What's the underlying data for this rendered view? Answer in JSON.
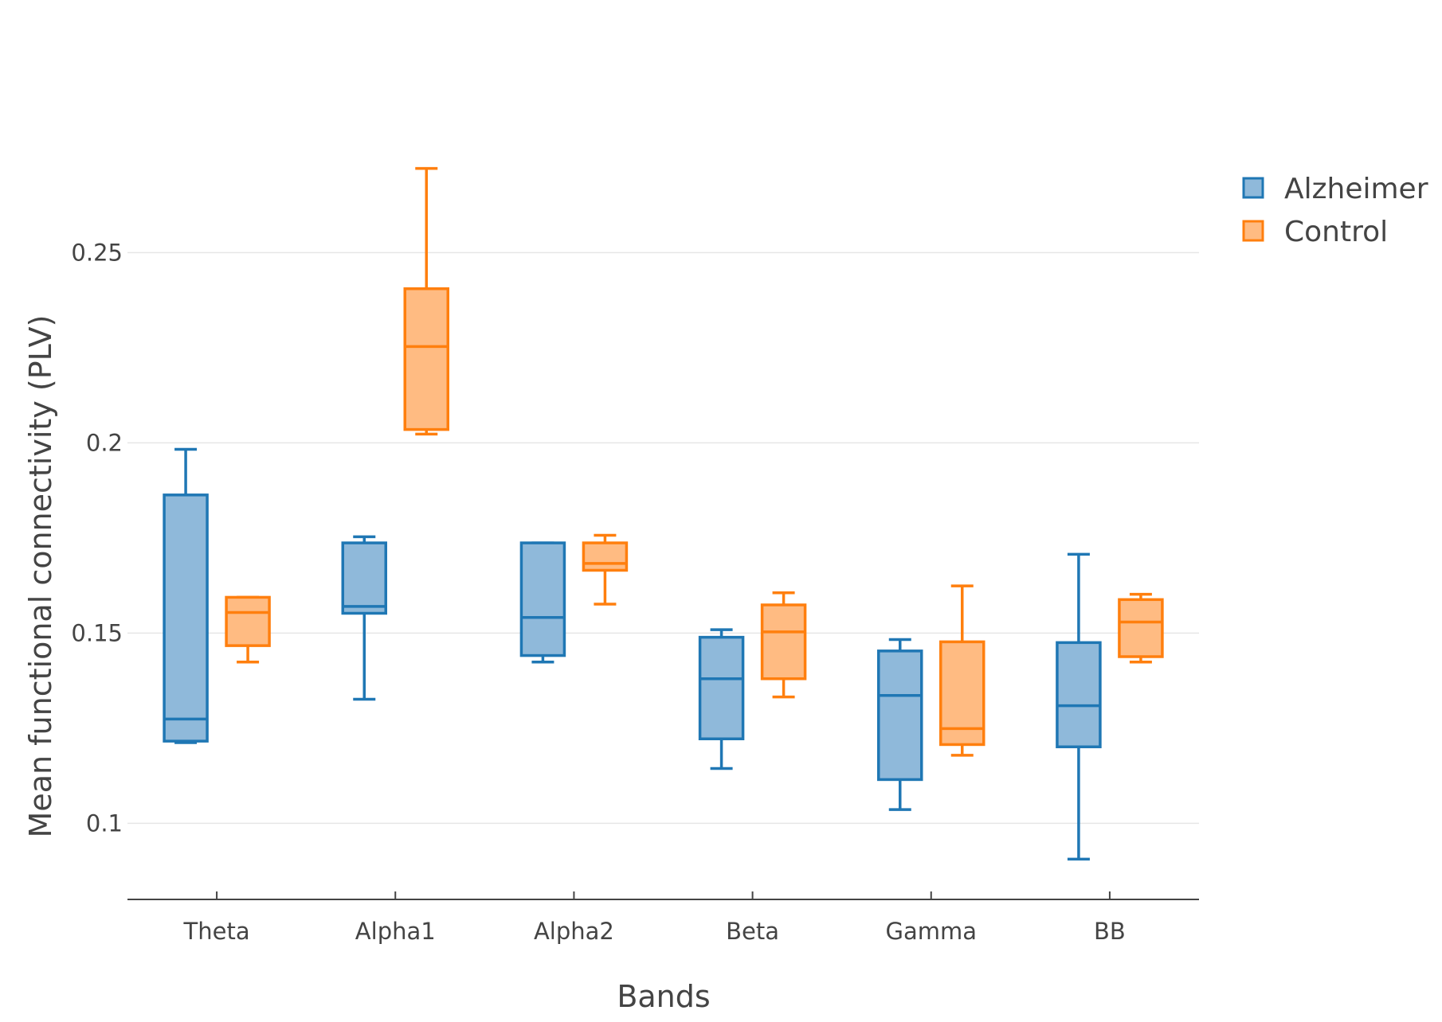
{
  "chart_data": {
    "type": "box",
    "title": "",
    "xlabel": "Bands",
    "ylabel": "Mean functional connectivity (PLV)",
    "categories": [
      "Theta",
      "Alpha1",
      "Alpha2",
      "Beta",
      "Gamma",
      "BB"
    ],
    "ylim": [
      0.08,
      0.285
    ],
    "yticks": [
      {
        "value": 0.1,
        "label": "0.1"
      },
      {
        "value": 0.15,
        "label": "0.15"
      },
      {
        "value": 0.2,
        "label": "0.2"
      },
      {
        "value": 0.25,
        "label": "0.25"
      }
    ],
    "grid": true,
    "legend_position": "top-right",
    "series": [
      {
        "name": "Alzheimer",
        "color": "#1f77b4",
        "fill": "#8fb9da",
        "boxes": [
          {
            "min": 0.1212,
            "q1": 0.1216,
            "median": 0.1274,
            "q3": 0.1863,
            "max": 0.1983
          },
          {
            "min": 0.1326,
            "q1": 0.1552,
            "median": 0.157,
            "q3": 0.1737,
            "max": 0.1753
          },
          {
            "min": 0.1424,
            "q1": 0.1441,
            "median": 0.1541,
            "q3": 0.1737,
            "max": 0.1737
          },
          {
            "min": 0.1144,
            "q1": 0.1222,
            "median": 0.138,
            "q3": 0.1489,
            "max": 0.1509
          },
          {
            "min": 0.1036,
            "q1": 0.1115,
            "median": 0.1336,
            "q3": 0.1453,
            "max": 0.1483
          },
          {
            "min": 0.0906,
            "q1": 0.1201,
            "median": 0.1309,
            "q3": 0.1475,
            "max": 0.1707
          }
        ]
      },
      {
        "name": "Control",
        "color": "#ff7f0e",
        "fill": "#ffbb82",
        "boxes": [
          {
            "min": 0.1424,
            "q1": 0.1467,
            "median": 0.1554,
            "q3": 0.1594,
            "max": 0.1594
          },
          {
            "min": 0.2023,
            "q1": 0.2035,
            "median": 0.2253,
            "q3": 0.2405,
            "max": 0.2721
          },
          {
            "min": 0.1576,
            "q1": 0.1665,
            "median": 0.1683,
            "q3": 0.1737,
            "max": 0.1757
          },
          {
            "min": 0.1332,
            "q1": 0.138,
            "median": 0.1503,
            "q3": 0.1574,
            "max": 0.1606
          },
          {
            "min": 0.1179,
            "q1": 0.1207,
            "median": 0.1249,
            "q3": 0.1477,
            "max": 0.1624
          },
          {
            "min": 0.1424,
            "q1": 0.1438,
            "median": 0.1529,
            "q3": 0.1588,
            "max": 0.1602
          }
        ]
      }
    ]
  }
}
